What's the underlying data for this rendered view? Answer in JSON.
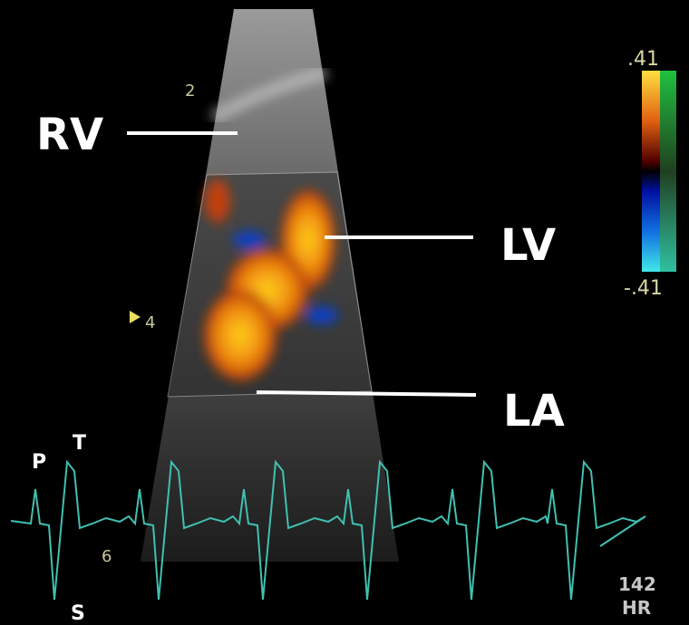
{
  "labels": {
    "rv": "RV",
    "lv": "LV",
    "la": "LA"
  },
  "color_scale": {
    "max": ".41",
    "min": "-.41"
  },
  "depth_marks": [
    "2",
    "4",
    "6"
  ],
  "ecg_waves": {
    "p": "P",
    "t": "T",
    "s": "S"
  },
  "heart_rate": {
    "value": 142,
    "unit": "HR"
  }
}
